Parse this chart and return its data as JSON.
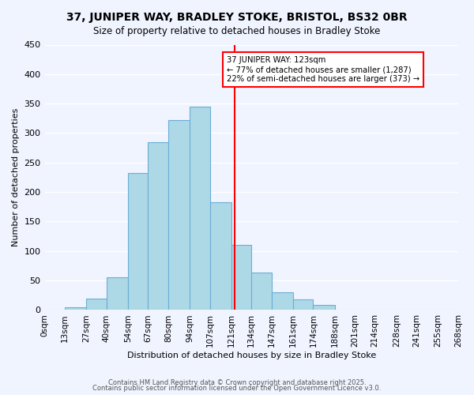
{
  "title": "37, JUNIPER WAY, BRADLEY STOKE, BRISTOL, BS32 0BR",
  "subtitle": "Size of property relative to detached houses in Bradley Stoke",
  "xlabel": "Distribution of detached houses by size in Bradley Stoke",
  "ylabel": "Number of detached properties",
  "bin_labels": [
    "0sqm",
    "13sqm",
    "27sqm",
    "40sqm",
    "54sqm",
    "67sqm",
    "80sqm",
    "94sqm",
    "107sqm",
    "121sqm",
    "134sqm",
    "147sqm",
    "161sqm",
    "174sqm",
    "188sqm",
    "201sqm",
    "214sqm",
    "228sqm",
    "241sqm",
    "255sqm",
    "268sqm"
  ],
  "bin_edges": [
    0,
    13,
    27,
    40,
    54,
    67,
    80,
    94,
    107,
    121,
    134,
    147,
    161,
    174,
    188,
    201,
    214,
    228,
    241,
    255,
    268
  ],
  "counts": [
    0,
    5,
    20,
    55,
    232,
    284,
    322,
    345,
    183,
    110,
    63,
    30,
    18,
    8,
    0,
    0,
    0,
    0,
    0,
    0
  ],
  "bar_color": "#add8e6",
  "bar_edge_color": "#6baed6",
  "marker_value": 123,
  "marker_color": "red",
  "annotation_title": "37 JUNIPER WAY: 123sqm",
  "annotation_line1": "← 77% of detached houses are smaller (1,287)",
  "annotation_line2": "22% of semi-detached houses are larger (373) →",
  "annotation_box_color": "white",
  "annotation_box_edge_color": "red",
  "ylim": [
    0,
    450
  ],
  "yticks": [
    0,
    50,
    100,
    150,
    200,
    250,
    300,
    350,
    400,
    450
  ],
  "footer1": "Contains HM Land Registry data © Crown copyright and database right 2025.",
  "footer2": "Contains public sector information licensed under the Open Government Licence v3.0.",
  "background_color": "#f0f4ff",
  "grid_color": "white"
}
